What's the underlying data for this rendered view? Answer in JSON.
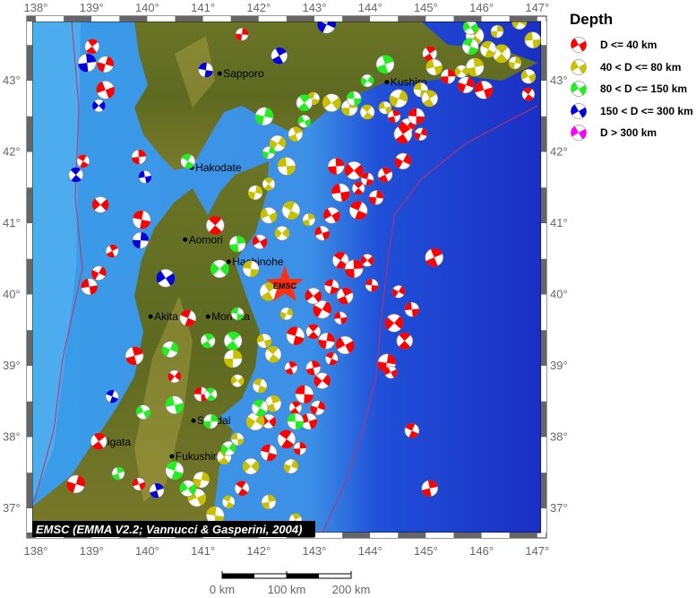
{
  "map": {
    "credit": "EMSC (EMMA V2.2; Vannucci & Gasperini, 2004)",
    "epicenter_label": "EMSC",
    "epicenter": [
      142.47,
      40.13
    ],
    "lon_ticks": [
      "138°",
      "139°",
      "140°",
      "141°",
      "142°",
      "143°",
      "144°",
      "145°",
      "146°",
      "147°"
    ],
    "lat_ticks": [
      "43°",
      "42°",
      "41°",
      "40°",
      "39°",
      "38°",
      "37°"
    ],
    "extent": {
      "lon": [
        137.84,
        147.16
      ],
      "lat": [
        36.59,
        43.91
      ]
    },
    "colors": {
      "ocean_deep": "#1a2fc4",
      "ocean_shelf": "#4aa8ec",
      "land": "#5e6b22",
      "star": "#ff3010"
    },
    "cities": [
      {
        "name": "Sapporo",
        "lon": 141.3,
        "lat": 43.1
      },
      {
        "name": "Kushiro",
        "lon": 144.3,
        "lat": 42.98
      },
      {
        "name": "Hakodate",
        "lon": 140.8,
        "lat": 41.78
      },
      {
        "name": "Aomori",
        "lon": 140.68,
        "lat": 40.77
      },
      {
        "name": "Hachinohe",
        "lon": 141.46,
        "lat": 40.46
      },
      {
        "name": "Akita",
        "lon": 140.06,
        "lat": 39.69
      },
      {
        "name": "Morioka",
        "lon": 141.09,
        "lat": 39.69
      },
      {
        "name": "Sendai",
        "lon": 140.83,
        "lat": 38.23
      },
      {
        "name": "Niigata",
        "lon": 139.04,
        "lat": 37.93
      },
      {
        "name": "Fukushima",
        "lon": 140.44,
        "lat": 37.73
      }
    ]
  },
  "scale_bar": {
    "labels": [
      "0 km",
      "100 km",
      "200 km"
    ]
  },
  "legend": {
    "title": "Depth",
    "items": [
      {
        "label": "D <= 40 km",
        "color": "#ff0000"
      },
      {
        "label": "40 < D <= 80 km",
        "color": "#c8c000"
      },
      {
        "label": "80 < D <= 150 km",
        "color": "#22ee22"
      },
      {
        "label": "150 < D <= 300 km",
        "color": "#0000dd"
      },
      {
        "label": "D > 300 km",
        "color": "#ff00ff"
      }
    ]
  },
  "events": {
    "d0_40": [
      [
        139.01,
        43.48
      ],
      [
        139.25,
        43.23
      ],
      [
        139.25,
        42.87
      ],
      [
        138.85,
        41.87
      ],
      [
        139.85,
        41.93
      ],
      [
        139.16,
        41.26
      ],
      [
        139.9,
        41.05
      ],
      [
        139.37,
        40.61
      ],
      [
        139.13,
        40.3
      ],
      [
        138.96,
        40.11
      ],
      [
        141.22,
        40.97
      ],
      [
        141.7,
        43.65
      ],
      [
        142.02,
        40.74
      ],
      [
        140.73,
        39.67
      ],
      [
        139.77,
        39.14
      ],
      [
        140.49,
        38.85
      ],
      [
        140.97,
        38.6
      ],
      [
        139.13,
        37.94
      ],
      [
        138.72,
        37.34
      ],
      [
        139.85,
        37.34
      ],
      [
        141.7,
        37.28
      ],
      [
        143.39,
        41.8
      ],
      [
        143.71,
        41.74
      ],
      [
        143.95,
        41.62
      ],
      [
        144.27,
        41.68
      ],
      [
        144.59,
        41.87
      ],
      [
        143.47,
        41.43
      ],
      [
        143.79,
        41.49
      ],
      [
        144.11,
        41.36
      ],
      [
        143.31,
        41.11
      ],
      [
        143.79,
        41.18
      ],
      [
        144.43,
        42.5
      ],
      [
        144.67,
        42.37
      ],
      [
        144.83,
        42.5
      ],
      [
        144.59,
        42.25
      ],
      [
        144.91,
        42.25
      ],
      [
        143.14,
        40.86
      ],
      [
        143.47,
        40.48
      ],
      [
        143.71,
        40.36
      ],
      [
        143.95,
        40.48
      ],
      [
        143.31,
        40.11
      ],
      [
        143.55,
        39.98
      ],
      [
        143.14,
        39.79
      ],
      [
        143.47,
        39.67
      ],
      [
        142.98,
        39.48
      ],
      [
        143.22,
        39.35
      ],
      [
        143.55,
        39.29
      ],
      [
        143.31,
        39.1
      ],
      [
        142.98,
        38.97
      ],
      [
        143.14,
        38.79
      ],
      [
        142.82,
        38.6
      ],
      [
        142.66,
        38.41
      ],
      [
        143.06,
        38.41
      ],
      [
        142.9,
        38.22
      ],
      [
        142.5,
        37.97
      ],
      [
        142.74,
        37.84
      ],
      [
        142.18,
        38.22
      ],
      [
        142.18,
        37.78
      ],
      [
        145.15,
        40.52
      ],
      [
        144.51,
        40.04
      ],
      [
        144.75,
        39.79
      ],
      [
        144.62,
        39.35
      ],
      [
        144.3,
        39.04
      ],
      [
        144.37,
        38.91
      ],
      [
        144.75,
        38.09
      ],
      [
        145.07,
        37.28
      ],
      [
        144.43,
        39.6
      ],
      [
        144.03,
        40.13
      ],
      [
        145.07,
        43.38
      ],
      [
        145.72,
        42.94
      ],
      [
        146.04,
        42.87
      ],
      [
        146.84,
        42.81
      ],
      [
        145.4,
        43.06
      ],
      [
        142.98,
        39.98
      ],
      [
        142.66,
        39.42
      ],
      [
        142.58,
        38.97
      ]
    ],
    "d40_80": [
      [
        146.68,
        43.82
      ],
      [
        146.92,
        43.57
      ],
      [
        146.36,
        43.38
      ],
      [
        146.6,
        43.25
      ],
      [
        146.84,
        43.06
      ],
      [
        146.12,
        43.44
      ],
      [
        145.88,
        43.19
      ],
      [
        145.64,
        43.13
      ],
      [
        144.91,
        42.87
      ],
      [
        145.07,
        42.75
      ],
      [
        144.51,
        42.75
      ],
      [
        144.27,
        42.62
      ],
      [
        143.95,
        42.56
      ],
      [
        143.63,
        42.62
      ],
      [
        143.31,
        42.69
      ],
      [
        142.98,
        42.75
      ],
      [
        142.66,
        42.25
      ],
      [
        142.34,
        42.12
      ],
      [
        142.5,
        41.8
      ],
      [
        142.18,
        41.55
      ],
      [
        141.94,
        41.43
      ],
      [
        142.18,
        41.11
      ],
      [
        142.58,
        41.18
      ],
      [
        142.9,
        41.05
      ],
      [
        142.42,
        40.86
      ],
      [
        141.86,
        40.36
      ],
      [
        142.18,
        40.04
      ],
      [
        142.5,
        39.73
      ],
      [
        142.1,
        39.35
      ],
      [
        142.26,
        39.16
      ],
      [
        141.54,
        39.1
      ],
      [
        141.62,
        38.79
      ],
      [
        142.02,
        38.72
      ],
      [
        142.26,
        38.47
      ],
      [
        141.94,
        38.22
      ],
      [
        141.62,
        37.97
      ],
      [
        141.38,
        37.72
      ],
      [
        140.97,
        37.4
      ],
      [
        140.89,
        37.15
      ],
      [
        141.46,
        37.09
      ],
      [
        142.18,
        37.09
      ],
      [
        141.86,
        37.59
      ],
      [
        141.22,
        36.9
      ],
      [
        142.66,
        36.84
      ],
      [
        142.58,
        37.59
      ],
      [
        145.15,
        43.19
      ],
      [
        145.88,
        43.63
      ],
      [
        146.28,
        43.69
      ]
    ],
    "d80_150": [
      [
        145.8,
        43.75
      ],
      [
        145.8,
        43.48
      ],
      [
        144.27,
        43.23
      ],
      [
        143.95,
        43.0
      ],
      [
        143.71,
        42.75
      ],
      [
        142.82,
        42.69
      ],
      [
        142.1,
        42.5
      ],
      [
        142.82,
        42.43
      ],
      [
        140.73,
        41.87
      ],
      [
        141.62,
        40.71
      ],
      [
        141.3,
        40.36
      ],
      [
        141.62,
        39.73
      ],
      [
        141.09,
        39.35
      ],
      [
        140.41,
        39.23
      ],
      [
        140.49,
        38.45
      ],
      [
        141.14,
        38.6
      ],
      [
        141.14,
        38.22
      ],
      [
        140.73,
        37.28
      ],
      [
        140.49,
        37.53
      ],
      [
        139.48,
        37.49
      ],
      [
        141.46,
        37.84
      ],
      [
        142.66,
        38.22
      ],
      [
        141.54,
        39.35
      ],
      [
        142.18,
        41.99
      ],
      [
        139.93,
        38.35
      ],
      [
        142.02,
        38.41
      ]
    ],
    "d150_300": [
      [
        138.92,
        43.25
      ],
      [
        139.13,
        42.65
      ],
      [
        141.05,
        43.15
      ],
      [
        142.37,
        43.35
      ],
      [
        143.22,
        43.79
      ],
      [
        139.96,
        41.65
      ],
      [
        138.72,
        41.68
      ],
      [
        139.88,
        40.76
      ],
      [
        140.33,
        40.23
      ],
      [
        139.37,
        38.57
      ],
      [
        140.17,
        37.25
      ]
    ],
    "d_gt_300": []
  }
}
